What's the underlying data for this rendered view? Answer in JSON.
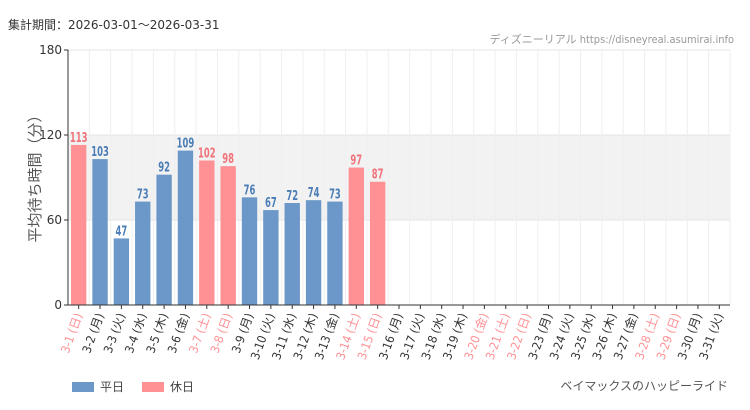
{
  "header": {
    "period": "集計期間：2026-03-01〜2026-03-31",
    "source": "ディズニーリアル https://disneyreal.asumirai.info"
  },
  "legend": {
    "weekday_label": "平日",
    "holiday_label": "休日"
  },
  "attraction": "ベイマックスのハッピーライド",
  "colors": {
    "weekday": "#6b98c8",
    "holiday": "#ff9094",
    "weekday_text": "#4a7db5",
    "holiday_text": "#f0727a",
    "band": "#f2f2f2",
    "grid": "#e4e4e4",
    "axis": "#333333"
  },
  "chart_data": {
    "type": "bar",
    "title": "",
    "xlabel": "",
    "ylabel": "平均待ち時間（分）",
    "ylim": [
      0,
      180
    ],
    "yticks": [
      0,
      60,
      120,
      180
    ],
    "shaded_band": [
      60,
      120
    ],
    "categories": [
      "3-1 (日)",
      "3-2 (月)",
      "3-3 (火)",
      "3-4 (水)",
      "3-5 (木)",
      "3-6 (金)",
      "3-7 (土)",
      "3-8 (日)",
      "3-9 (月)",
      "3-10 (火)",
      "3-11 (水)",
      "3-12 (木)",
      "3-13 (金)",
      "3-14 (土)",
      "3-15 (日)",
      "3-16 (月)",
      "3-17 (火)",
      "3-18 (水)",
      "3-19 (木)",
      "3-20 (金)",
      "3-21 (土)",
      "3-22 (日)",
      "3-23 (月)",
      "3-24 (火)",
      "3-25 (水)",
      "3-26 (木)",
      "3-27 (金)",
      "3-28 (土)",
      "3-29 (日)",
      "3-30 (月)",
      "3-31 (火)"
    ],
    "holiday": [
      true,
      false,
      false,
      false,
      false,
      false,
      true,
      true,
      false,
      false,
      false,
      false,
      false,
      true,
      true,
      false,
      false,
      false,
      false,
      true,
      true,
      true,
      false,
      false,
      false,
      false,
      false,
      true,
      true,
      false,
      false
    ],
    "values": [
      113,
      103,
      47,
      73,
      92,
      109,
      102,
      98,
      76,
      67,
      72,
      74,
      73,
      97,
      87,
      null,
      null,
      null,
      null,
      null,
      null,
      null,
      null,
      null,
      null,
      null,
      null,
      null,
      null,
      null,
      null
    ],
    "series": [
      {
        "name": "平日",
        "values": [
          null,
          103,
          47,
          73,
          92,
          109,
          null,
          null,
          76,
          67,
          72,
          74,
          73,
          null,
          null,
          null,
          null,
          null,
          null,
          null,
          null,
          null,
          null,
          null,
          null,
          null,
          null,
          null,
          null,
          null,
          null
        ]
      },
      {
        "name": "休日",
        "values": [
          113,
          null,
          null,
          null,
          null,
          null,
          102,
          98,
          null,
          null,
          null,
          null,
          null,
          97,
          87,
          null,
          null,
          null,
          null,
          null,
          null,
          null,
          null,
          null,
          null,
          null,
          null,
          null,
          null,
          null,
          null
        ]
      }
    ]
  }
}
